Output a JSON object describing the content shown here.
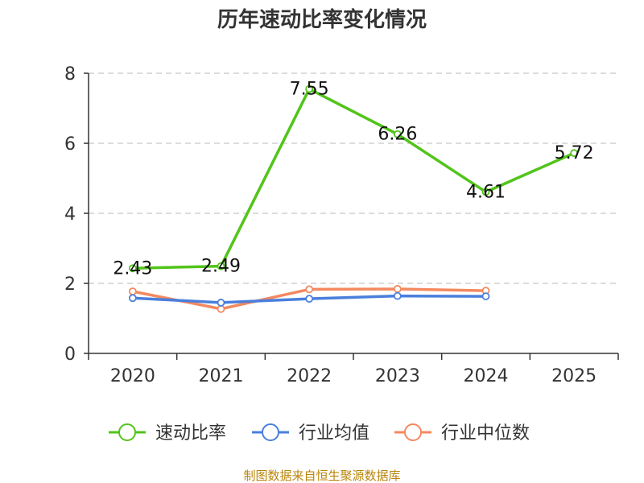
{
  "chart_data": {
    "type": "line",
    "title": "历年速动比率变化情况",
    "categories": [
      "2020",
      "2021",
      "2022",
      "2023",
      "2024",
      "2025"
    ],
    "ylim": [
      0,
      8
    ],
    "yticks": [
      "0",
      "2",
      "4",
      "6",
      "8"
    ],
    "grid": true,
    "legend_position": "bottom",
    "series": [
      {
        "name": "速动比率",
        "color": "#52c41a",
        "values": [
          2.43,
          2.49,
          7.55,
          6.26,
          4.61,
          5.72
        ],
        "labels": [
          "2.43",
          "2.49",
          "7.55",
          "6.26",
          "4.61",
          "5.72"
        ]
      },
      {
        "name": "行业均值",
        "color": "#4a7fdc",
        "values": [
          1.58,
          1.45,
          1.56,
          1.64,
          1.63,
          null
        ]
      },
      {
        "name": "行业中位数",
        "color": "#f4895f",
        "values": [
          1.77,
          1.27,
          1.83,
          1.84,
          1.79,
          null
        ]
      }
    ],
    "source": "制图数据来自恒生聚源数据库"
  }
}
